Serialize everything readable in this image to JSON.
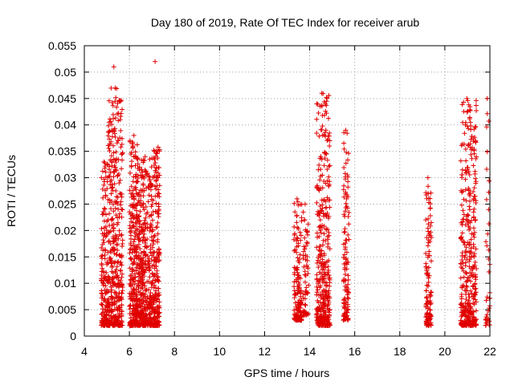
{
  "chart_data": {
    "type": "scatter",
    "title": "Day 180 of 2019, Rate Of TEC Index for receiver arub",
    "xlabel": "GPS time / hours",
    "ylabel": "ROTI / TECUs",
    "xlim": [
      4,
      22
    ],
    "ylim": [
      0,
      0.055
    ],
    "xticks": [
      "4",
      "6",
      "8",
      "10",
      "12",
      "14",
      "16",
      "18",
      "20",
      "22"
    ],
    "yticks": [
      "0",
      "0.005",
      "0.01",
      "0.015",
      "0.02",
      "0.025",
      "0.03",
      "0.035",
      "0.04",
      "0.045",
      "0.05",
      "0.055"
    ],
    "grid": true,
    "marker": "+",
    "color": "#e00000",
    "series": [
      {
        "name": "ROTI",
        "clusters": [
          {
            "x_range": [
              4.75,
              5.05
            ],
            "y_range": [
              0.002,
              0.033
            ],
            "peak": 0.033,
            "density": 160
          },
          {
            "x_range": [
              5.05,
              5.7
            ],
            "y_range": [
              0.002,
              0.047
            ],
            "peak": 0.051,
            "density": 420
          },
          {
            "x_range": [
              6.0,
              6.5
            ],
            "y_range": [
              0.002,
              0.037
            ],
            "peak": 0.038,
            "density": 380
          },
          {
            "x_range": [
              6.5,
              7.0
            ],
            "y_range": [
              0.002,
              0.034
            ],
            "peak": 0.034,
            "density": 320
          },
          {
            "x_range": [
              7.0,
              7.35
            ],
            "y_range": [
              0.002,
              0.036
            ],
            "peak": 0.052,
            "density": 230
          },
          {
            "x_range": [
              13.3,
              13.65
            ],
            "y_range": [
              0.003,
              0.026
            ],
            "peak": 0.026,
            "density": 140
          },
          {
            "x_range": [
              13.7,
              13.95
            ],
            "y_range": [
              0.004,
              0.025
            ],
            "peak": 0.025,
            "density": 60
          },
          {
            "x_range": [
              14.3,
              14.9
            ],
            "y_range": [
              0.002,
              0.046
            ],
            "peak": 0.046,
            "density": 380
          },
          {
            "x_range": [
              15.5,
              15.75
            ],
            "y_range": [
              0.003,
              0.039
            ],
            "peak": 0.039,
            "density": 120
          },
          {
            "x_range": [
              19.15,
              19.4
            ],
            "y_range": [
              0.002,
              0.03
            ],
            "peak": 0.03,
            "density": 120
          },
          {
            "x_range": [
              20.7,
              21.4
            ],
            "y_range": [
              0.002,
              0.045
            ],
            "peak": 0.045,
            "density": 380
          },
          {
            "x_range": [
              21.8,
              22.0
            ],
            "y_range": [
              0.002,
              0.045
            ],
            "peak": 0.045,
            "density": 40
          }
        ]
      }
    ]
  }
}
